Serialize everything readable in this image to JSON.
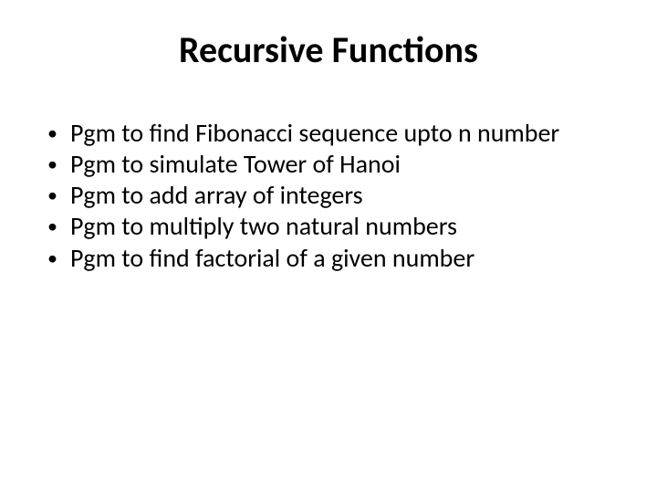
{
  "slide": {
    "title": "Recursive Functions",
    "bullets": [
      "Pgm to find Fibonacci sequence upto n number",
      "Pgm to simulate Tower of Hanoi",
      "Pgm to add array of integers",
      "Pgm to multiply two natural numbers",
      "Pgm to find factorial of a given number"
    ],
    "style": {
      "background_color": "#ffffff",
      "text_color": "#000000",
      "title_fontsize": 40,
      "title_fontweight": 700,
      "body_fontsize": 28,
      "bullet_char": "•",
      "font_family": "Calibri"
    }
  }
}
